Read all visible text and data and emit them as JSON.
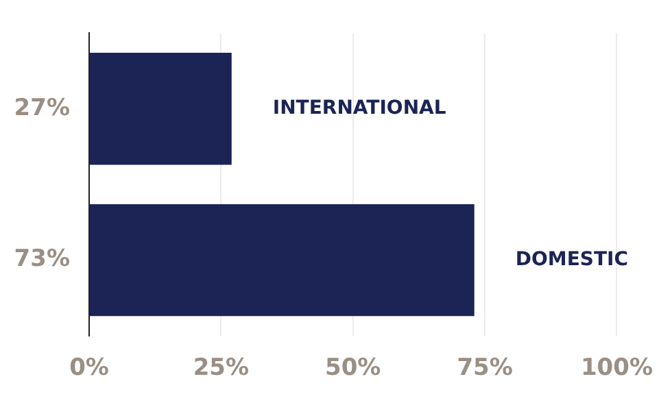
{
  "chart_data": {
    "type": "bar",
    "orientation": "horizontal",
    "categories": [
      "INTERNATIONAL",
      "DOMESTIC"
    ],
    "values": [
      27,
      73
    ],
    "value_labels": [
      "27%",
      "73%"
    ],
    "color": "#1c2455",
    "xlim": [
      0,
      100
    ],
    "xticks": [
      {
        "value": 0,
        "label": "0%"
      },
      {
        "value": 25,
        "label": "25%"
      },
      {
        "value": 50,
        "label": "50%"
      },
      {
        "value": 75,
        "label": "75%"
      },
      {
        "value": 100,
        "label": "100%"
      }
    ],
    "grid": "x",
    "legend": false
  }
}
